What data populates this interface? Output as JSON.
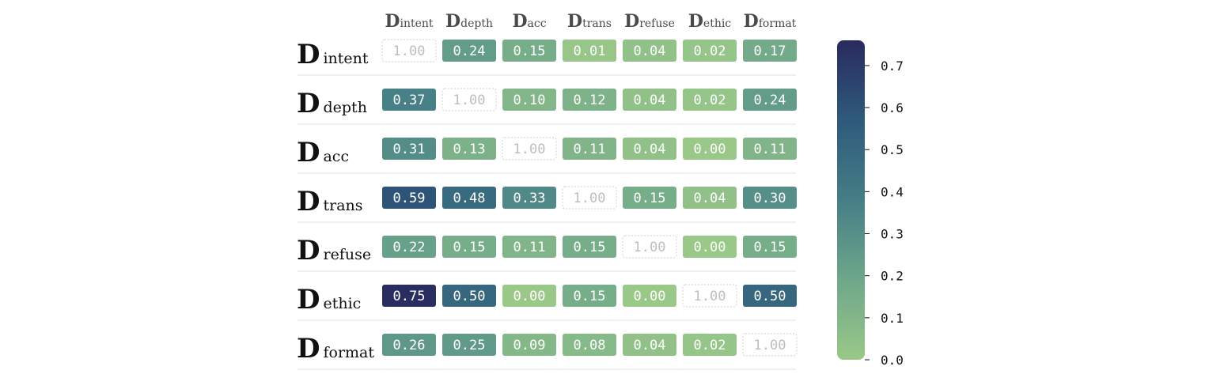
{
  "chart_data": {
    "type": "heatmap",
    "row_labels": [
      {
        "main": "D",
        "sub": "intent"
      },
      {
        "main": "D",
        "sub": "depth"
      },
      {
        "main": "D",
        "sub": "acc"
      },
      {
        "main": "D",
        "sub": "trans"
      },
      {
        "main": "D",
        "sub": "refuse"
      },
      {
        "main": "D",
        "sub": "ethic"
      },
      {
        "main": "D",
        "sub": "format"
      }
    ],
    "col_labels": [
      {
        "main": "D",
        "sub": "intent"
      },
      {
        "main": "D",
        "sub": "depth"
      },
      {
        "main": "D",
        "sub": "acc"
      },
      {
        "main": "D",
        "sub": "trans"
      },
      {
        "main": "D",
        "sub": "refuse"
      },
      {
        "main": "D",
        "sub": "ethic"
      },
      {
        "main": "D",
        "sub": "format"
      }
    ],
    "values": [
      [
        1.0,
        0.24,
        0.15,
        0.01,
        0.04,
        0.02,
        0.17
      ],
      [
        0.37,
        1.0,
        0.1,
        0.12,
        0.04,
        0.02,
        0.24
      ],
      [
        0.31,
        0.13,
        1.0,
        0.11,
        0.04,
        0.0,
        0.11
      ],
      [
        0.59,
        0.48,
        0.33,
        1.0,
        0.15,
        0.04,
        0.3
      ],
      [
        0.22,
        0.15,
        0.11,
        0.15,
        1.0,
        0.0,
        0.15
      ],
      [
        0.75,
        0.5,
        0.0,
        0.15,
        0.0,
        1.0,
        0.5
      ],
      [
        0.26,
        0.25,
        0.09,
        0.08,
        0.04,
        0.02,
        1.0
      ]
    ],
    "diagonal_style": "dashed-outline",
    "colorbar": {
      "min": 0.0,
      "max": 0.76,
      "ticks": [
        "0.0",
        "0.1",
        "0.2",
        "0.3",
        "0.4",
        "0.5",
        "0.6",
        "0.7"
      ],
      "colors": [
        "#9ac888",
        "#6ea78a",
        "#457e86",
        "#2e5a7b",
        "#2a2a5d"
      ]
    }
  }
}
